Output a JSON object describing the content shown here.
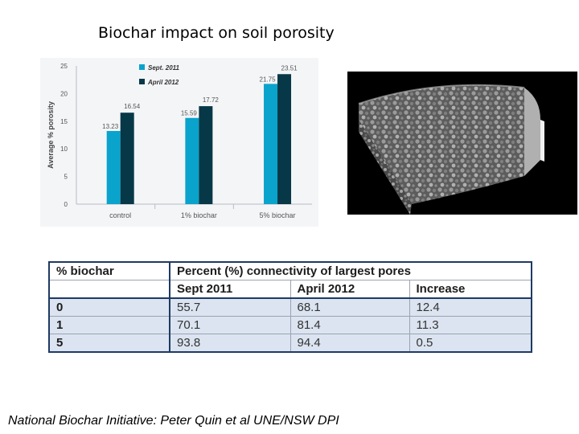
{
  "title": "Biochar impact on soil porosity",
  "chart_data": {
    "type": "bar",
    "title": "",
    "xlabel": "",
    "ylabel": "Average % porosity",
    "categories": [
      "control",
      "1% biochar",
      "5% biochar"
    ],
    "ylim": [
      0,
      25
    ],
    "yticks": [
      0,
      5,
      10,
      15,
      20,
      25
    ],
    "grid": false,
    "legend_position": "top-left",
    "series": [
      {
        "name": "Sept. 2011",
        "color": "#0aa3cc",
        "values": [
          13.23,
          15.59,
          21.75
        ]
      },
      {
        "name": "April 2012",
        "color": "#073847",
        "values": [
          16.54,
          17.72,
          23.51
        ]
      }
    ]
  },
  "image": {
    "icon": "ct-scan-soil-core-image"
  },
  "table": {
    "col0_header": "% biochar",
    "group_header": "Percent (%) connectivity of largest pores",
    "subheaders": [
      "Sept 2011",
      "April 2012",
      "Increase"
    ],
    "rows": [
      {
        "label": "0",
        "cells": [
          "55.7",
          "68.1",
          "12.4"
        ]
      },
      {
        "label": "1",
        "cells": [
          "70.1",
          "81.4",
          "11.3"
        ]
      },
      {
        "label": "5",
        "cells": [
          "93.8",
          "94.4",
          "0.5"
        ]
      }
    ]
  },
  "footer": "National Biochar Initiative: Peter Quin et al UNE/NSW DPI"
}
